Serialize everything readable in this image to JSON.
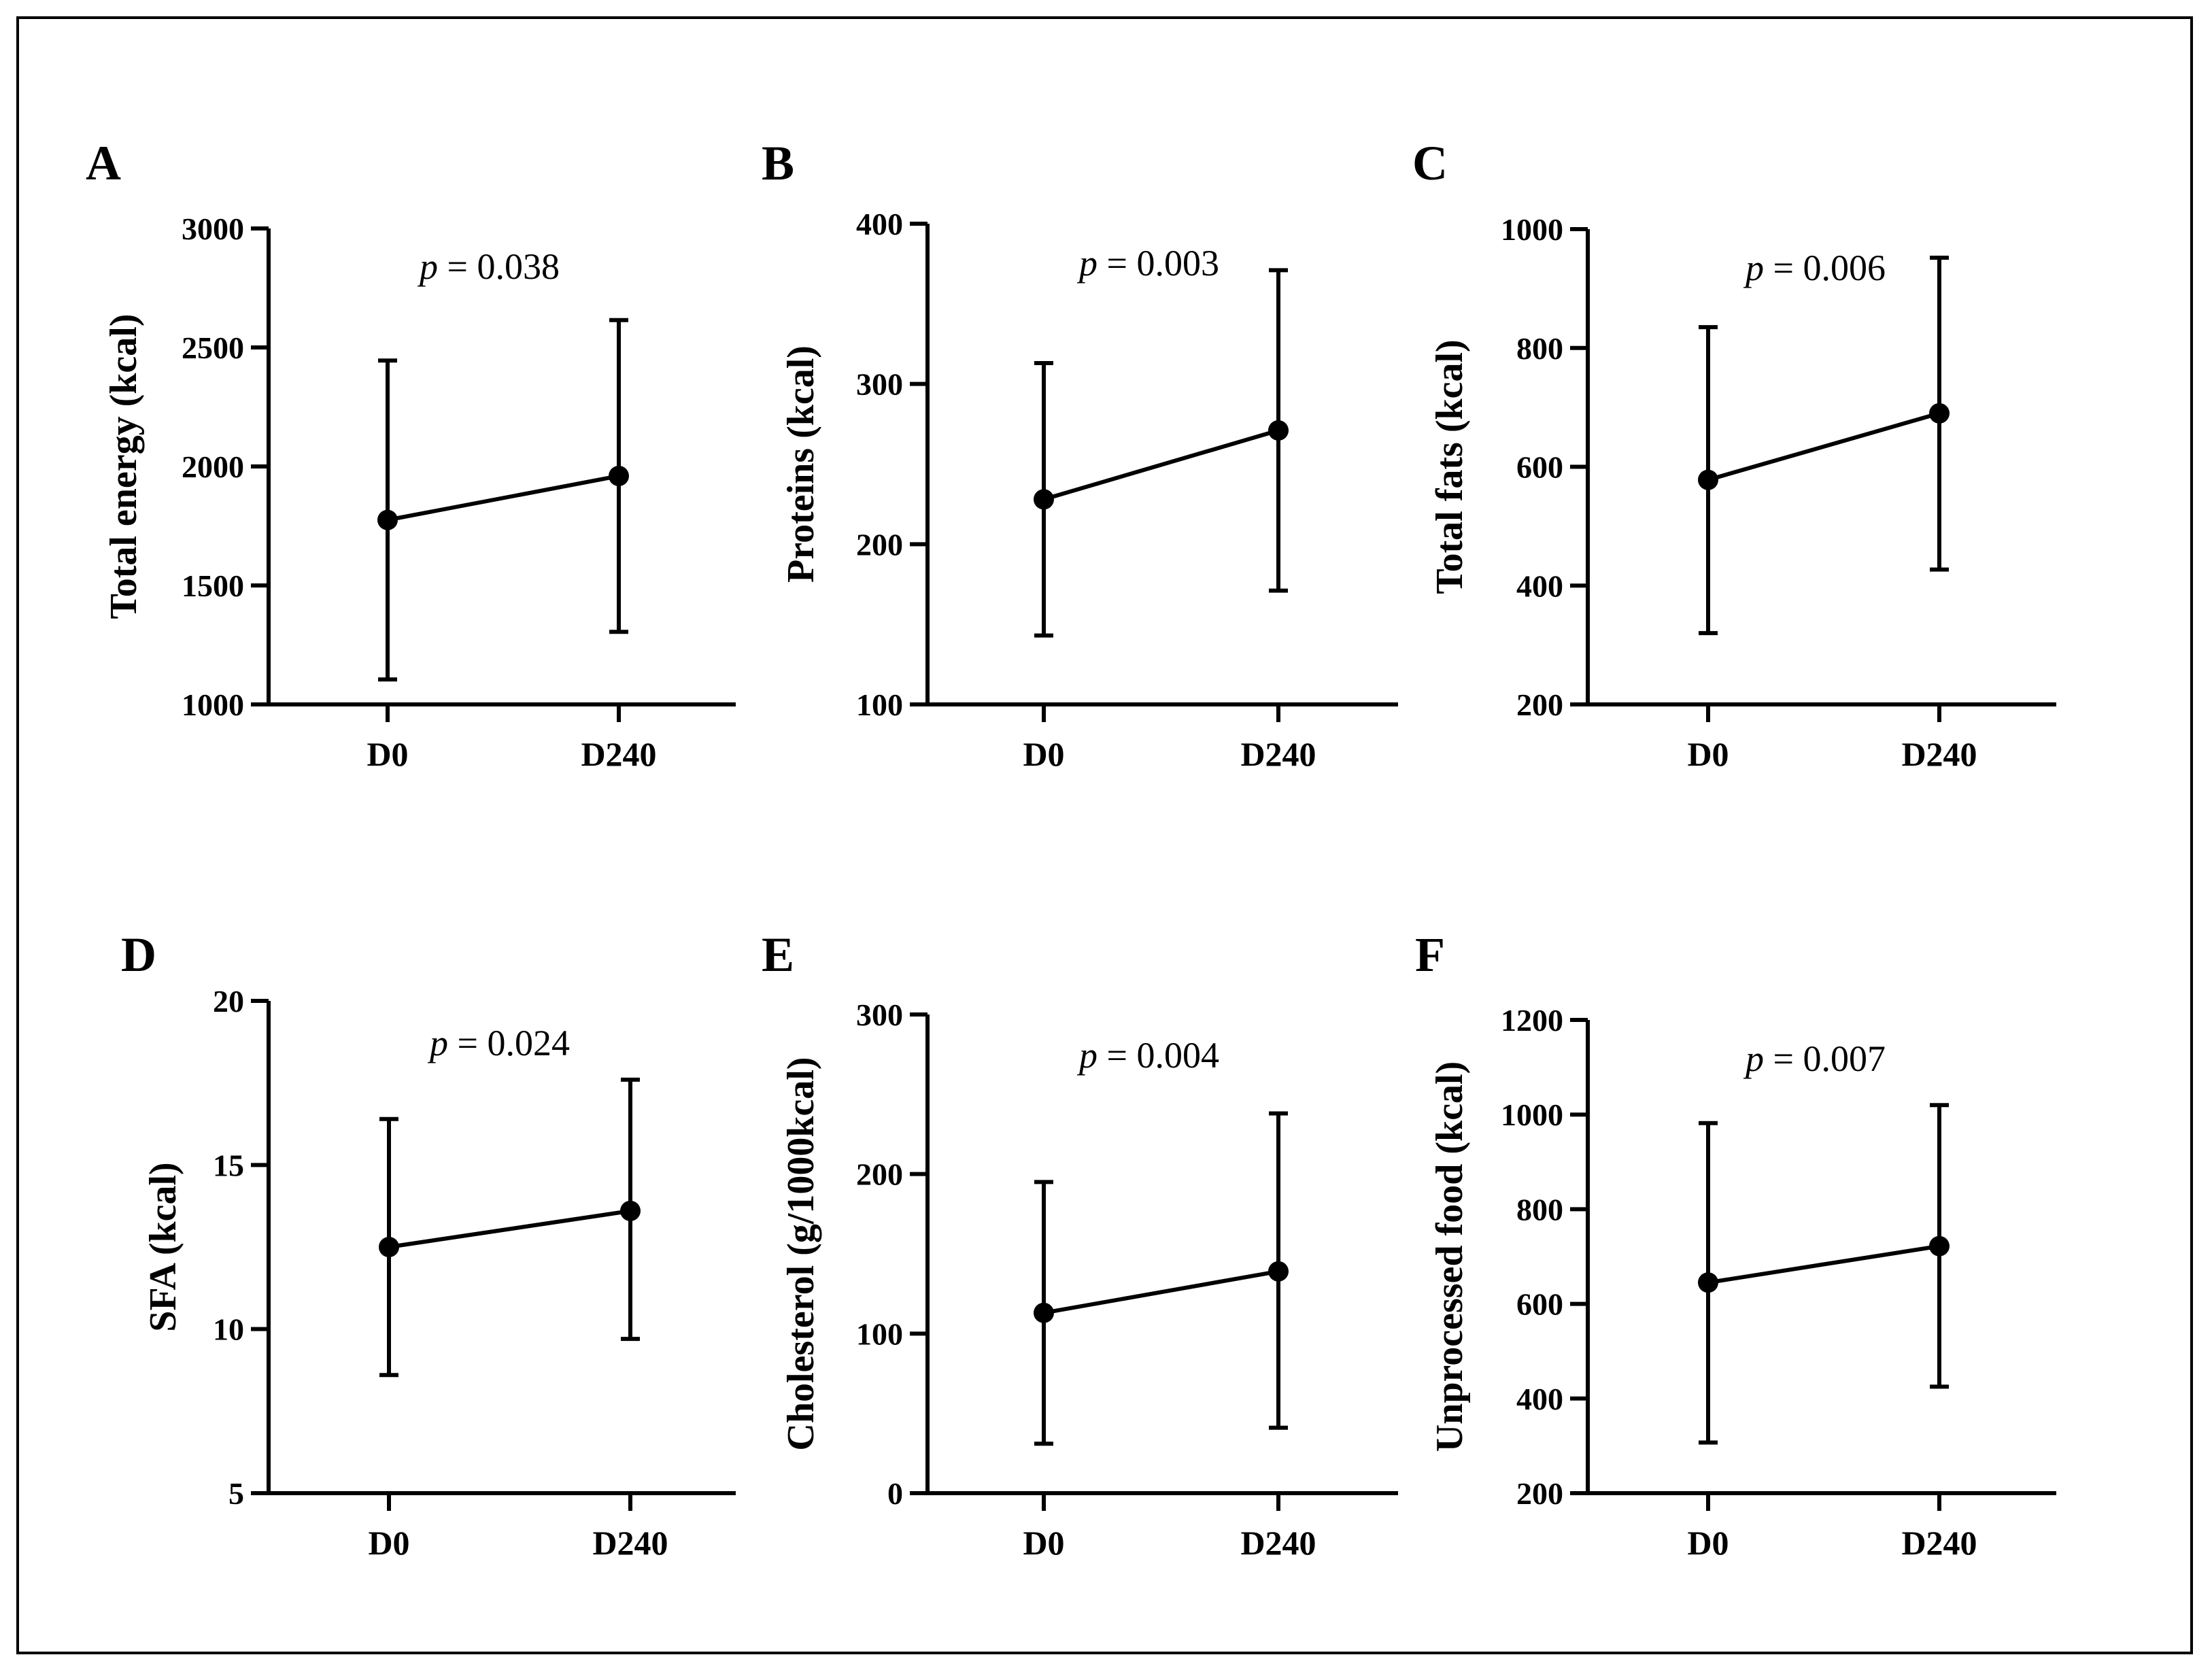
{
  "chart_data": [
    {
      "panel": "A",
      "type": "line",
      "categories": [
        "D0",
        "D240"
      ],
      "series": [
        {
          "values": [
            1775,
            1960
          ],
          "error_low": [
            1105,
            1305
          ],
          "error_high": [
            2445,
            2615
          ]
        }
      ],
      "ylabel": "Total energy (kcal)",
      "ylim": [
        1000,
        3000
      ],
      "yticks": [
        "1000",
        "1500",
        "2000",
        "2500",
        "3000"
      ],
      "annotation": {
        "p": "p",
        "rest": " = 0.038"
      }
    },
    {
      "panel": "B",
      "type": "line",
      "categories": [
        "D0",
        "D240"
      ],
      "series": [
        {
          "values": [
            228,
            271
          ],
          "error_low": [
            143,
            171
          ],
          "error_high": [
            313,
            371
          ]
        }
      ],
      "ylabel": "Proteins (kcal)",
      "ylim": [
        100,
        400
      ],
      "yticks": [
        "100",
        "200",
        "300",
        "400"
      ],
      "annotation": {
        "p": "p",
        "rest": " = 0.003"
      }
    },
    {
      "panel": "C",
      "type": "line",
      "categories": [
        "D0",
        "D240"
      ],
      "series": [
        {
          "values": [
            578,
            690
          ],
          "error_low": [
            320,
            427
          ],
          "error_high": [
            835,
            952
          ]
        }
      ],
      "ylabel": "Total fats (kcal)",
      "ylim": [
        200,
        1000
      ],
      "yticks": [
        "200",
        "400",
        "600",
        "800",
        "1000"
      ],
      "annotation": {
        "p": "p",
        "rest": " = 0.006"
      }
    },
    {
      "panel": "D",
      "type": "line",
      "categories": [
        "D0",
        "D240"
      ],
      "series": [
        {
          "values": [
            12.5,
            13.6
          ],
          "error_low": [
            8.6,
            9.7
          ],
          "error_high": [
            16.4,
            17.6
          ]
        }
      ],
      "ylabel": "SFA (kcal)",
      "ylim": [
        5,
        20
      ],
      "yticks": [
        "5",
        "10",
        "15",
        "20"
      ],
      "annotation": {
        "p": "p",
        "rest": " = 0.024"
      }
    },
    {
      "panel": "E",
      "type": "line",
      "categories": [
        "D0",
        "D240"
      ],
      "series": [
        {
          "values": [
            113,
            139
          ],
          "error_low": [
            31,
            41
          ],
          "error_high": [
            195,
            238
          ]
        }
      ],
      "ylabel": "Cholesterol (g/1000kcal)",
      "ylim": [
        0,
        300
      ],
      "yticks": [
        "0",
        "100",
        "200",
        "300"
      ],
      "annotation": {
        "p": "p",
        "rest": " = 0.004"
      }
    },
    {
      "panel": "F",
      "type": "line",
      "categories": [
        "D0",
        "D240"
      ],
      "series": [
        {
          "values": [
            645,
            722
          ],
          "error_low": [
            307,
            425
          ],
          "error_high": [
            982,
            1020
          ]
        }
      ],
      "ylabel": "Unprocessed food (kcal)",
      "ylim": [
        200,
        1200
      ],
      "yticks": [
        "200",
        "400",
        "600",
        "800",
        "1000",
        "1200"
      ],
      "annotation": {
        "p": "p",
        "rest": " = 0.007"
      }
    }
  ]
}
